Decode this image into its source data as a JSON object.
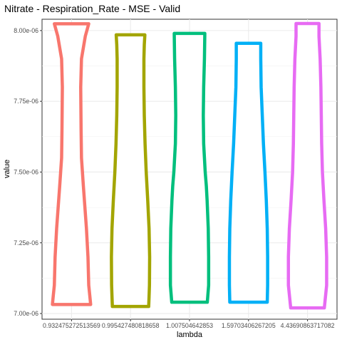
{
  "chart_data": {
    "type": "violin",
    "title": "Nitrate - Respiration_Rate - MSE - Valid",
    "xlabel": "lambda",
    "ylabel": "value",
    "ylim": [
      6.98e-06,
      8.04e-06
    ],
    "y_ticks": [
      7e-06,
      7.25e-06,
      7.5e-06,
      7.75e-06,
      8e-06
    ],
    "y_tick_labels": [
      "7.00e-06",
      "7.25e-06",
      "7.50e-06",
      "7.75e-06",
      "8.00e-06"
    ],
    "grid": true,
    "legend": "none",
    "categories": [
      "0.932475272513569",
      "0.995427480818658",
      "1.007504642853",
      "1.59703406267205",
      "4.43690863717082"
    ],
    "series": [
      {
        "color": "#F8766D",
        "y_min": 7.032e-06,
        "y_max": 8.024e-06,
        "profile": [
          [
            7.032e-06,
            1.0
          ],
          [
            7.06e-06,
            0.96
          ],
          [
            7.1e-06,
            0.9
          ],
          [
            7.2e-06,
            0.86
          ],
          [
            7.3e-06,
            0.78
          ],
          [
            7.45e-06,
            0.62
          ],
          [
            7.55e-06,
            0.52
          ],
          [
            7.65e-06,
            0.5
          ],
          [
            7.8e-06,
            0.48
          ],
          [
            7.9e-06,
            0.52
          ],
          [
            7.98e-06,
            0.72
          ],
          [
            8.024e-06,
            0.9
          ]
        ]
      },
      {
        "color": "#A3A500",
        "y_min": 7.025e-06,
        "y_max": 7.985e-06,
        "profile": [
          [
            7.025e-06,
            0.95
          ],
          [
            7.06e-06,
            0.97
          ],
          [
            7.1e-06,
            0.99
          ],
          [
            7.2e-06,
            1.0
          ],
          [
            7.3e-06,
            0.97
          ],
          [
            7.4e-06,
            0.9
          ],
          [
            7.5e-06,
            0.82
          ],
          [
            7.6e-06,
            0.76
          ],
          [
            7.7e-06,
            0.72
          ],
          [
            7.8e-06,
            0.7
          ],
          [
            7.9e-06,
            0.7
          ],
          [
            7.95e-06,
            0.72
          ],
          [
            7.985e-06,
            0.75
          ]
        ]
      },
      {
        "color": "#00BF7D",
        "y_min": 7.04e-06,
        "y_max": 7.99e-06,
        "profile": [
          [
            7.04e-06,
            0.93
          ],
          [
            7.1e-06,
            1.0
          ],
          [
            7.2e-06,
            1.0
          ],
          [
            7.3e-06,
            0.98
          ],
          [
            7.4e-06,
            0.92
          ],
          [
            7.45e-06,
            0.88
          ],
          [
            7.5e-06,
            0.82
          ],
          [
            7.55e-06,
            0.78
          ],
          [
            7.6e-06,
            0.74
          ],
          [
            7.7e-06,
            0.72
          ],
          [
            7.8e-06,
            0.74
          ],
          [
            7.9e-06,
            0.78
          ],
          [
            7.99e-06,
            0.8
          ]
        ]
      },
      {
        "color": "#00B0F6",
        "y_min": 7.04e-06,
        "y_max": 7.955e-06,
        "profile": [
          [
            7.04e-06,
            0.98
          ],
          [
            7.1e-06,
            1.0
          ],
          [
            7.2e-06,
            1.0
          ],
          [
            7.3e-06,
            0.98
          ],
          [
            7.4e-06,
            0.93
          ],
          [
            7.5e-06,
            0.86
          ],
          [
            7.6e-06,
            0.78
          ],
          [
            7.7e-06,
            0.72
          ],
          [
            7.8e-06,
            0.66
          ],
          [
            7.9e-06,
            0.64
          ],
          [
            7.955e-06,
            0.64
          ]
        ]
      },
      {
        "color": "#E76BF3",
        "y_min": 7.02e-06,
        "y_max": 8.025e-06,
        "profile": [
          [
            7.02e-06,
            0.88
          ],
          [
            7.1e-06,
            1.0
          ],
          [
            7.2e-06,
            1.0
          ],
          [
            7.3e-06,
            0.95
          ],
          [
            7.4e-06,
            0.86
          ],
          [
            7.5e-06,
            0.78
          ],
          [
            7.6e-06,
            0.74
          ],
          [
            7.7e-06,
            0.72
          ],
          [
            7.8e-06,
            0.7
          ],
          [
            7.9e-06,
            0.66
          ],
          [
            7.98e-06,
            0.6
          ],
          [
            8.025e-06,
            0.6
          ]
        ]
      }
    ]
  }
}
